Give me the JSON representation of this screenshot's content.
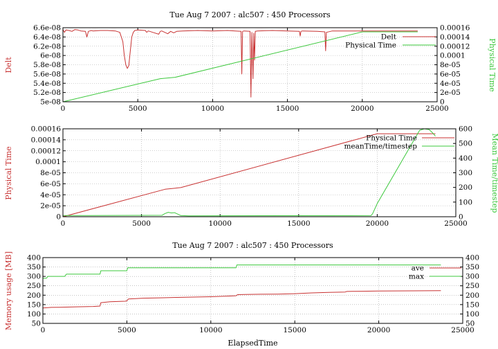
{
  "colors": {
    "red": "#c83232",
    "green": "#3cc83c"
  },
  "chart_data": [
    {
      "type": "line",
      "title": "Tue Aug 7 2007 : alc507 : 450 Processors",
      "xlabel": "",
      "ylabel": "Delt",
      "y2label": "Physical Time",
      "xlim": [
        0,
        25000
      ],
      "ylim": [
        5e-08,
        6.6e-08
      ],
      "y2lim": [
        0,
        0.00016
      ],
      "xticks": [
        "0",
        "5000",
        "10000",
        "15000",
        "20000",
        "25000"
      ],
      "yticks": [
        "5e-08",
        "5.2e-08",
        "5.4e-08",
        "5.6e-08",
        "5.8e-08",
        "6e-08",
        "6.2e-08",
        "6.4e-08",
        "6.6e-08"
      ],
      "y2ticks": [
        "0",
        "2e-05",
        "4e-05",
        "6e-05",
        "8e-05",
        "0.0001",
        "0.00012",
        "0.00014",
        "0.00016"
      ],
      "grid": true,
      "legend": "top-right",
      "series": [
        {
          "name": "Delt",
          "axis": "y",
          "color": "#c83232",
          "x": [
            0,
            100,
            200,
            400,
            600,
            800,
            1000,
            1200,
            1500,
            1600,
            1700,
            1800,
            1900,
            2000,
            2500,
            3000,
            3500,
            3800,
            4000,
            4100,
            4200,
            4300,
            4400,
            4500,
            4600,
            4700,
            4800,
            5000,
            5500,
            5600,
            5700,
            5800,
            6000,
            6400,
            6500,
            6600,
            6800,
            7000,
            7200,
            7400,
            7600,
            8000,
            9000,
            10000,
            11000,
            11500,
            11900,
            11950,
            12000,
            12100,
            12500,
            12560,
            12620,
            12700,
            12750,
            12800,
            12850,
            13000,
            14000,
            15000,
            15800,
            15850,
            15900,
            16000,
            17000,
            17500,
            17550,
            17600,
            18000,
            19000,
            20000,
            21000,
            22000,
            23000,
            23700
          ],
          "y": [
            6.56e-08,
            6.5e-08,
            6.55e-08,
            6.54e-08,
            6.52e-08,
            6.56e-08,
            6.55e-08,
            6.53e-08,
            6.52e-08,
            6.4e-08,
            6.52e-08,
            6.53e-08,
            6.54e-08,
            6.53e-08,
            6.54e-08,
            6.54e-08,
            6.53e-08,
            6.5e-08,
            6.3e-08,
            6e-08,
            5.8e-08,
            5.72e-08,
            5.78e-08,
            6.1e-08,
            6.4e-08,
            6.5e-08,
            6.54e-08,
            6.55e-08,
            6.54e-08,
            6.5e-08,
            6.53e-08,
            6.52e-08,
            6.5e-08,
            6.46e-08,
            6.52e-08,
            6.53e-08,
            6.5e-08,
            6.47e-08,
            6.52e-08,
            6.49e-08,
            6.52e-08,
            6.53e-08,
            6.54e-08,
            6.53e-08,
            6.54e-08,
            6.53e-08,
            6.52e-08,
            5.6e-08,
            6.52e-08,
            6.53e-08,
            6.52e-08,
            5.1e-08,
            6.5e-08,
            5.5e-08,
            6.48e-08,
            5.9e-08,
            6.52e-08,
            6.53e-08,
            6.54e-08,
            6.53e-08,
            6.52e-08,
            6.42e-08,
            6.52e-08,
            6.53e-08,
            6.52e-08,
            6.51e-08,
            6.1e-08,
            6.5e-08,
            6.53e-08,
            6.53e-08,
            6.53e-08,
            6.53e-08,
            6.53e-08,
            6.53e-08,
            6.53e-08
          ]
        },
        {
          "name": "Physical Time",
          "axis": "y2",
          "color": "#3cc83c",
          "x": [
            0,
            6500,
            7500,
            20000,
            23700
          ],
          "y": [
            0,
            5e-05,
            5.3e-05,
            0.000151,
            0.000151
          ]
        }
      ]
    },
    {
      "type": "line",
      "title": "",
      "xlabel": "",
      "ylabel": "Physical Time",
      "y2label": "Mean Time/timestep",
      "xlim": [
        0,
        25000
      ],
      "ylim": [
        0,
        0.00016
      ],
      "y2lim": [
        0,
        600
      ],
      "xticks": [
        "0",
        "5000",
        "10000",
        "15000",
        "20000",
        "25000"
      ],
      "yticks": [
        "0",
        "2e-05",
        "4e-05",
        "6e-05",
        "8e-05",
        "0.0001",
        "0.00012",
        "0.00014",
        "0.00016"
      ],
      "y2ticks": [
        "0",
        "100",
        "200",
        "300",
        "400",
        "500",
        "600"
      ],
      "grid": true,
      "legend": "top-right",
      "series": [
        {
          "name": "Physical Time",
          "axis": "y",
          "color": "#c83232",
          "x": [
            0,
            6500,
            7500,
            20000,
            23700
          ],
          "y": [
            0,
            5e-05,
            5.3e-05,
            0.000151,
            0.000151
          ]
        },
        {
          "name": "meanTime/timestep",
          "axis": "y2",
          "color": "#3cc83c",
          "x": [
            0,
            6300,
            6500,
            6700,
            6900,
            7100,
            7300,
            7500,
            8000,
            19600,
            19700,
            20000,
            22700,
            23000,
            23300,
            23500,
            23700
          ],
          "y": [
            8,
            10,
            22,
            30,
            26,
            28,
            18,
            8,
            6,
            8,
            20,
            90,
            590,
            600,
            595,
            575,
            550
          ]
        }
      ]
    },
    {
      "type": "line",
      "title": "Tue Aug 7 2007 : alc507 : 450 Processors",
      "xlabel": "ElapsedTime",
      "ylabel": "Memory usage [MB]",
      "y2label": "",
      "xlim": [
        0,
        25000
      ],
      "ylim": [
        50,
        400
      ],
      "y2lim": [
        50,
        400
      ],
      "xticks": [
        "0",
        "5000",
        "10000",
        "15000",
        "20000",
        "25000"
      ],
      "yticks": [
        "50",
        "100",
        "150",
        "200",
        "250",
        "300",
        "350",
        "400"
      ],
      "y2ticks": [
        "50",
        "100",
        "150",
        "200",
        "250",
        "300",
        "350",
        "400"
      ],
      "grid": true,
      "legend": "top-right",
      "series": [
        {
          "name": "ave",
          "axis": "y",
          "color": "#c83232",
          "x": [
            0,
            300,
            500,
            1000,
            2000,
            3000,
            3400,
            3450,
            4000,
            4900,
            5000,
            5100,
            6000,
            7000,
            8000,
            9000,
            10000,
            11000,
            11500,
            11600,
            12000,
            13000,
            14000,
            15000,
            16000,
            17000,
            18000,
            18100,
            19000,
            20000,
            22000,
            23700
          ],
          "y": [
            132,
            134,
            135,
            136,
            138,
            140,
            142,
            160,
            165,
            168,
            170,
            180,
            184,
            186,
            188,
            190,
            192,
            195,
            197,
            203,
            204,
            205,
            206,
            208,
            212,
            215,
            217,
            220,
            221,
            222,
            223,
            224
          ]
        },
        {
          "name": "max",
          "axis": "y",
          "color": "#3cc83c",
          "x": [
            0,
            200,
            300,
            1300,
            1400,
            3400,
            3450,
            5000,
            5050,
            11500,
            11550,
            23700
          ],
          "y": [
            290,
            290,
            300,
            300,
            312,
            312,
            330,
            330,
            346,
            346,
            361,
            361
          ]
        }
      ]
    }
  ]
}
